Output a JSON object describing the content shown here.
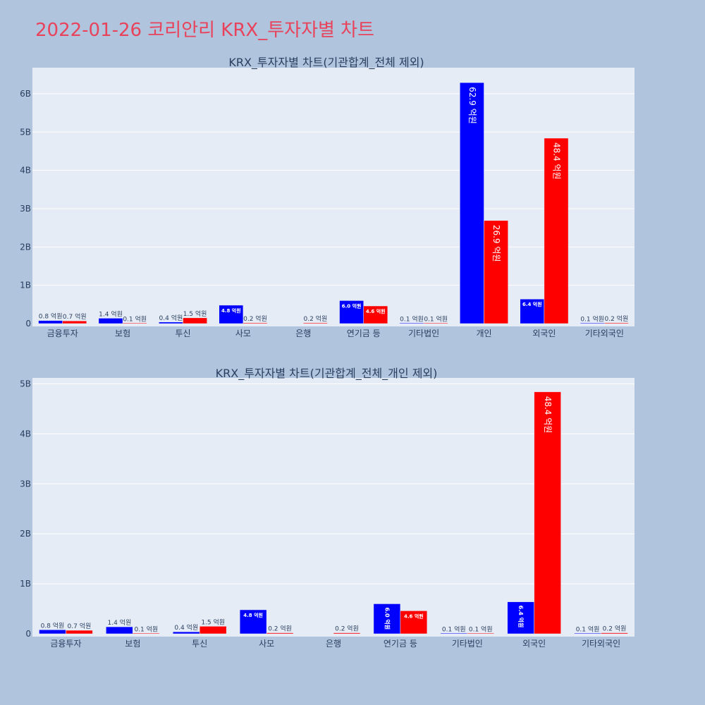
{
  "page": {
    "title": "2022-01-26 코리안리 KRX_투자자별 차트",
    "title_color": "#e8435a",
    "background": "#b0c4de",
    "plot_background": "#e5ecf6",
    "buy_color": "#0000ff",
    "sell_color": "#ff0000"
  },
  "chart_data": [
    {
      "type": "bar",
      "title": "KRX_투자자별 차트(기관합계_전체 제외)",
      "categories": [
        "금융투자",
        "보험",
        "투신",
        "사모",
        "은행",
        "연기금 등",
        "기타법인",
        "개인",
        "외국인",
        "기타외국인"
      ],
      "series": [
        {
          "color": "#0000ff",
          "values": [
            0.08,
            0.14,
            0.04,
            0.48,
            0.0,
            0.6,
            0.01,
            6.29,
            0.64,
            0.01
          ],
          "labels": [
            "0.8 억원",
            "1.4 억원",
            "0.4 억원",
            "4.8 억원",
            "",
            "6.0 억원",
            "0.1 억원",
            "62.9 억원",
            "6.4 억원",
            "0.1 억원"
          ]
        },
        {
          "color": "#ff0000",
          "values": [
            0.07,
            0.01,
            0.15,
            0.02,
            0.02,
            0.46,
            0.01,
            2.69,
            4.84,
            0.02
          ],
          "labels": [
            "0.7 억원",
            "0.1 억원",
            "1.5 억원",
            "0.2 억원",
            "0.2 억원",
            "4.6 억원",
            "0.1 억원",
            "26.9 억원",
            "48.4 억원",
            "0.2 억원"
          ]
        }
      ],
      "yticks": [
        0,
        1,
        2,
        3,
        4,
        5,
        6
      ],
      "ytick_labels": [
        "0",
        "1B",
        "2B",
        "3B",
        "4B",
        "5B",
        "6B"
      ],
      "ylim": [
        0,
        6.68
      ],
      "grid": true,
      "legend": false
    },
    {
      "type": "bar",
      "title": "KRX_투자자별 차트(기관합계_전체_개인 제외)",
      "categories": [
        "금융투자",
        "보험",
        "투신",
        "사모",
        "은행",
        "연기금 등",
        "기타법인",
        "외국인",
        "기타외국인"
      ],
      "series": [
        {
          "color": "#0000ff",
          "values": [
            0.08,
            0.14,
            0.04,
            0.48,
            0.0,
            0.6,
            0.01,
            0.64,
            0.01
          ],
          "labels": [
            "0.8 억원",
            "1.4 억원",
            "0.4 억원",
            "4.8 억원",
            "",
            "6.0 억원",
            "0.1 억원",
            "6.4 억원",
            "0.1 억원"
          ]
        },
        {
          "color": "#ff0000",
          "values": [
            0.07,
            0.01,
            0.15,
            0.02,
            0.02,
            0.46,
            0.01,
            4.84,
            0.02
          ],
          "labels": [
            "0.7 억원",
            "0.1 억원",
            "1.5 억원",
            "0.2 억원",
            "0.2 억원",
            "4.6 억원",
            "0.1 억원",
            "48.4 억원",
            "0.2 억원"
          ]
        }
      ],
      "yticks": [
        0,
        1,
        2,
        3,
        4,
        5
      ],
      "ytick_labels": [
        "0",
        "1B",
        "2B",
        "3B",
        "4B",
        "5B"
      ],
      "ylim": [
        0,
        5.12
      ],
      "grid": true,
      "legend": false
    }
  ]
}
